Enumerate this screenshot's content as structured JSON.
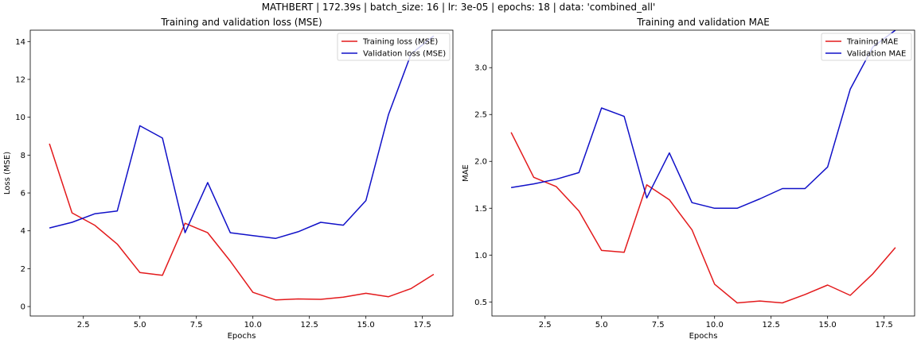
{
  "suptitle": "MATHBERT | 172.39s | batch_size: 16 | lr: 3e-05 | epochs: 18 | data: 'combined_all'",
  "colors": {
    "train": "#e31a1c",
    "val": "#1010c8"
  },
  "chart_data": [
    {
      "type": "line",
      "title": "Training and validation loss (MSE)",
      "xlabel": "Epochs",
      "ylabel": "Loss (MSE)",
      "xlim": [
        0.15,
        18.85
      ],
      "ylim": [
        -0.5,
        14.6
      ],
      "xticks": [
        2.5,
        5.0,
        7.5,
        10.0,
        12.5,
        15.0,
        17.5
      ],
      "xtick_labels": [
        "2.5",
        "5.0",
        "7.5",
        "10.0",
        "12.5",
        "15.0",
        "17.5"
      ],
      "yticks": [
        0,
        2,
        4,
        6,
        8,
        10,
        12,
        14
      ],
      "ytick_labels": [
        "0",
        "2",
        "4",
        "6",
        "8",
        "10",
        "12",
        "14"
      ],
      "legend_position": "upper right",
      "x": [
        1,
        2,
        3,
        4,
        5,
        6,
        7,
        8,
        9,
        10,
        11,
        12,
        13,
        14,
        15,
        16,
        17,
        18
      ],
      "series": [
        {
          "name": "Training loss (MSE)",
          "color_key": "train",
          "values": [
            8.6,
            4.95,
            4.3,
            3.3,
            1.8,
            1.65,
            4.4,
            3.9,
            2.4,
            0.75,
            0.35,
            0.4,
            0.38,
            0.5,
            0.7,
            0.52,
            0.95,
            1.7
          ]
        },
        {
          "name": "Validation loss (MSE)",
          "color_key": "val",
          "values": [
            4.15,
            4.45,
            4.9,
            5.05,
            9.55,
            8.9,
            3.9,
            6.55,
            3.9,
            3.75,
            3.6,
            3.95,
            4.45,
            4.3,
            5.6,
            10.15,
            13.35,
            14.3
          ]
        }
      ]
    },
    {
      "type": "line",
      "title": "Training and validation MAE",
      "xlabel": "Epochs",
      "ylabel": "MAE",
      "xlim": [
        0.15,
        18.85
      ],
      "ylim": [
        0.35,
        3.4
      ],
      "xticks": [
        2.5,
        5.0,
        7.5,
        10.0,
        12.5,
        15.0,
        17.5
      ],
      "xtick_labels": [
        "2.5",
        "5.0",
        "7.5",
        "10.0",
        "12.5",
        "15.0",
        "17.5"
      ],
      "yticks": [
        0.5,
        1.0,
        1.5,
        2.0,
        2.5,
        3.0
      ],
      "ytick_labels": [
        "0.5",
        "1.0",
        "1.5",
        "2.0",
        "2.5",
        "3.0"
      ],
      "legend_position": "upper right",
      "x": [
        1,
        2,
        3,
        4,
        5,
        6,
        7,
        8,
        9,
        10,
        11,
        12,
        13,
        14,
        15,
        16,
        17,
        18
      ],
      "series": [
        {
          "name": "Training MAE",
          "color_key": "train",
          "values": [
            2.31,
            1.83,
            1.73,
            1.47,
            1.05,
            1.03,
            1.75,
            1.59,
            1.27,
            0.69,
            0.49,
            0.51,
            0.49,
            0.58,
            0.68,
            0.57,
            0.8,
            1.08
          ]
        },
        {
          "name": "Validation MAE",
          "color_key": "val",
          "values": [
            1.72,
            1.76,
            1.81,
            1.88,
            2.57,
            2.48,
            1.61,
            2.09,
            1.56,
            1.5,
            1.5,
            1.6,
            1.71,
            1.71,
            1.94,
            2.77,
            3.22,
            3.4
          ]
        }
      ]
    }
  ]
}
